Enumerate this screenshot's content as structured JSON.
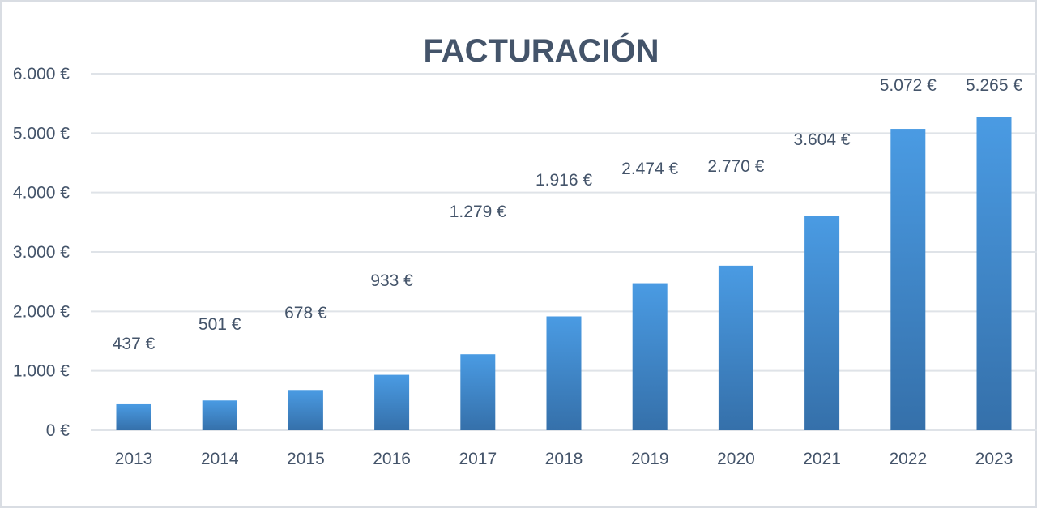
{
  "chart_data": {
    "type": "bar",
    "title": "FACTURACIÓN",
    "categories": [
      "2013",
      "2014",
      "2015",
      "2016",
      "2017",
      "2018",
      "2019",
      "2020",
      "2021",
      "2022",
      "2023"
    ],
    "values": [
      437,
      501,
      678,
      933,
      1279,
      1916,
      2474,
      2770,
      3604,
      5072,
      5265
    ],
    "data_labels": [
      "437 €",
      "501 €",
      "678 €",
      "933 €",
      "1.279 €",
      "1.916 €",
      "2.474 €",
      "2.770 €",
      "3.604 €",
      "5.072 €",
      "5.265 €"
    ],
    "y_ticks": [
      "0 €",
      "1.000 €",
      "2.000 €",
      "3.000 €",
      "4.000 €",
      "5.000 €",
      "6.000 €"
    ],
    "ylim": [
      0,
      6000
    ],
    "grid": true,
    "legend": "none",
    "colors": {
      "bar_top": "#4a9be3",
      "bar_bottom": "#3570aa",
      "text": "#44546a",
      "grid": "#dfe3e8"
    }
  }
}
